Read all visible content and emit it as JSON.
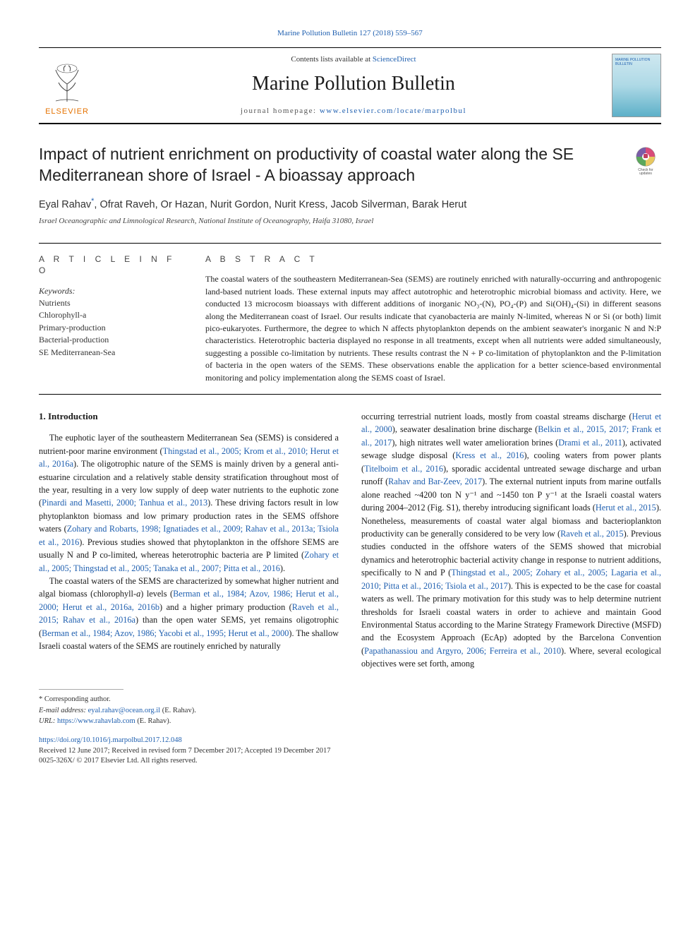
{
  "top_link_label": "Marine Pollution Bulletin 127 (2018) 559–567",
  "header": {
    "contents_prefix": "Contents lists available at ",
    "contents_link": "ScienceDirect",
    "journal_name": "Marine Pollution Bulletin",
    "homepage_prefix": "journal homepage: ",
    "homepage_url": "www.elsevier.com/locate/marpolbul",
    "elsevier": "ELSEVIER",
    "cover_small_text": "MARINE POLLUTION BULLETIN"
  },
  "check_badge": {
    "line1": "Check for",
    "line2": "updates"
  },
  "title": "Impact of nutrient enrichment on productivity of coastal water along the SE Mediterranean shore of Israel - A bioassay approach",
  "authors_html": "Eyal Rahav<sup style='color:#2060b0'>*</sup>, Ofrat Raveh, Or Hazan, Nurit Gordon, Nurit Kress, Jacob Silverman, Barak Herut",
  "affiliation": "Israel Oceanographic and Limnological Research, National Institute of Oceanography, Haifa 31080, Israel",
  "info": {
    "header": "A R T I C L E  I N F O",
    "kw_label": "Keywords:",
    "keywords": [
      "Nutrients",
      "Chlorophyll-a",
      "Primary-production",
      "Bacterial-production",
      "SE Mediterranean-Sea"
    ]
  },
  "abstract": {
    "header": "A B S T R A C T",
    "text": "The coastal waters of the southeastern Mediterranean-Sea (SEMS) are routinely enriched with naturally-occurring and anthropogenic land-based nutrient loads. These external inputs may affect autotrophic and heterotrophic microbial biomass and activity. Here, we conducted 13 microcosm bioassays with different additions of inorganic NO₃-(N), PO₄-(P) and Si(OH)₄-(Si) in different seasons along the Mediterranean coast of Israel. Our results indicate that cyanobacteria are mainly N-limited, whereas N or Si (or both) limit pico-eukaryotes. Furthermore, the degree to which N affects phytoplankton depends on the ambient seawater's inorganic N and N:P characteristics. Heterotrophic bacteria displayed no response in all treatments, except when all nutrients were added simultaneously, suggesting a possible co-limitation by nutrients. These results contrast the N + P co-limitation of phytoplankton and the P-limitation of bacteria in the open waters of the SEMS. These observations enable the application for a better science-based environmental monitoring and policy implementation along the SEMS coast of Israel."
  },
  "section1": {
    "title": "1. Introduction"
  },
  "col1_p1": "The euphotic layer of the southeastern Mediterranean Sea (SEMS) is considered a nutrient-poor marine environment (<span class='cite'>Thingstad et al., 2005; Krom et al., 2010; Herut et al., 2016a</span>). The oligotrophic nature of the SEMS is mainly driven by a general anti-estuarine circulation and a relatively stable density stratification throughout most of the year, resulting in a very low supply of deep water nutrients to the euphotic zone (<span class='cite'>Pinardi and Masetti, 2000; Tanhua et al., 2013</span>). These driving factors result in low phytoplankton biomass and low primary production rates in the SEMS offshore waters (<span class='cite'>Zohary and Robarts, 1998; Ignatiades et al., 2009; Rahav et al., 2013a; Tsiola et al., 2016</span>). Previous studies showed that phytoplankton in the offshore SEMS are usually N and P co-limited, whereas heterotrophic bacteria are P limited (<span class='cite'>Zohary et al., 2005; Thingstad et al., 2005; Tanaka et al., 2007; Pitta et al., 2016</span>).",
  "col1_p2": "The coastal waters of the SEMS are characterized by somewhat higher nutrient and algal biomass (chlorophyll-<i>a</i>) levels (<span class='cite'>Berman et al., 1984; Azov, 1986; Herut et al., 2000; Herut et al., 2016a, 2016b</span>) and a higher primary production (<span class='cite'>Raveh et al., 2015; Rahav et al., 2016a</span>) than the open water SEMS, yet remains oligotrophic (<span class='cite'>Berman et al., 1984; Azov, 1986; Yacobi et al., 1995; Herut et al., 2000</span>). The shallow Israeli coastal waters of the SEMS are routinely enriched by naturally",
  "col2_p1": "occurring terrestrial nutrient loads, mostly from coastal streams discharge (<span class='cite'>Herut et al., 2000</span>), seawater desalination brine discharge (<span class='cite'>Belkin et al., 2015, 2017; Frank et al., 2017</span>), high nitrates well water amelioration brines (<span class='cite'>Drami et al., 2011</span>), activated sewage sludge disposal (<span class='cite'>Kress et al., 2016</span>), cooling waters from power plants (<span class='cite'>Titelboim et al., 2016</span>), sporadic accidental untreated sewage discharge and urban runoff (<span class='cite'>Rahav and Bar-Zeev, 2017</span>). The external nutrient inputs from marine outfalls alone reached ~4200 ton N y⁻¹ and ~1450 ton P y⁻¹ at the Israeli coastal waters during 2004–2012 (Fig. S1), thereby introducing significant loads (<span class='cite'>Herut et al., 2015</span>). Nonetheless, measurements of coastal water algal biomass and bacterioplankton productivity can be generally considered to be very low (<span class='cite'>Raveh et al., 2015</span>). Previous studies conducted in the offshore waters of the SEMS showed that microbial dynamics and heterotrophic bacterial activity change in response to nutrient additions, specifically to N and P (<span class='cite'>Thingstad et al., 2005; Zohary et al., 2005; Lagaria et al., 2010; Pitta et al., 2016; Tsiola et al., 2017</span>). This is expected to be the case for coastal waters as well. The primary motivation for this study was to help determine nutrient thresholds for Israeli coastal waters in order to achieve and maintain Good Environmental Status according to the Marine Strategy Framework Directive (MSFD) and the Ecosystem Approach (EcAp) adopted by the Barcelona Convention (<span class='cite'>Papathanassiou and Argyro, 2006; Ferreira et al., 2010</span>). Where, several ecological objectives were set forth, among",
  "footer": {
    "corr": "* Corresponding author.",
    "email_label": "E-mail address:",
    "email": "eyal.rahav@ocean.org.il",
    "email_suffix": " (E. Rahav).",
    "url_label": "URL:",
    "url": "https://www.rahavlab.com",
    "url_suffix": " (E. Rahav).",
    "doi": "https://doi.org/10.1016/j.marpolbul.2017.12.048",
    "received": "Received 12 June 2017; Received in revised form 7 December 2017; Accepted 19 December 2017",
    "copyright": "0025-326X/ © 2017 Elsevier Ltd. All rights reserved."
  },
  "colors": {
    "link": "#2060b0",
    "elsevier_orange": "#e57200",
    "text": "#1a1a1a",
    "rule": "#000000"
  }
}
